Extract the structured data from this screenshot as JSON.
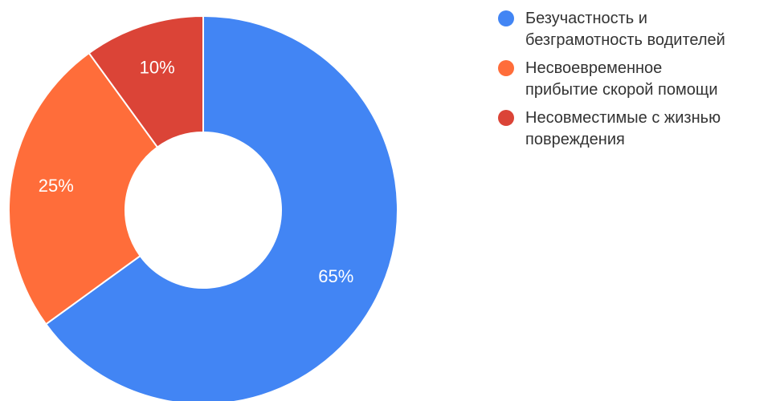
{
  "chart_data": {
    "type": "pie",
    "donut": true,
    "legend_position": "right",
    "slices": [
      {
        "label": "Безучастность и\nбезграмотность водителей",
        "value": 65,
        "display": "65%",
        "color": "#4285f4"
      },
      {
        "label": "Несвоевременное\nприбытие скорой помощи",
        "value": 25,
        "display": "25%",
        "color": "#ff6d3a"
      },
      {
        "label": "Несовместимые с жизнью\nповреждения",
        "value": 10,
        "display": "10%",
        "color": "#db4437"
      }
    ]
  }
}
